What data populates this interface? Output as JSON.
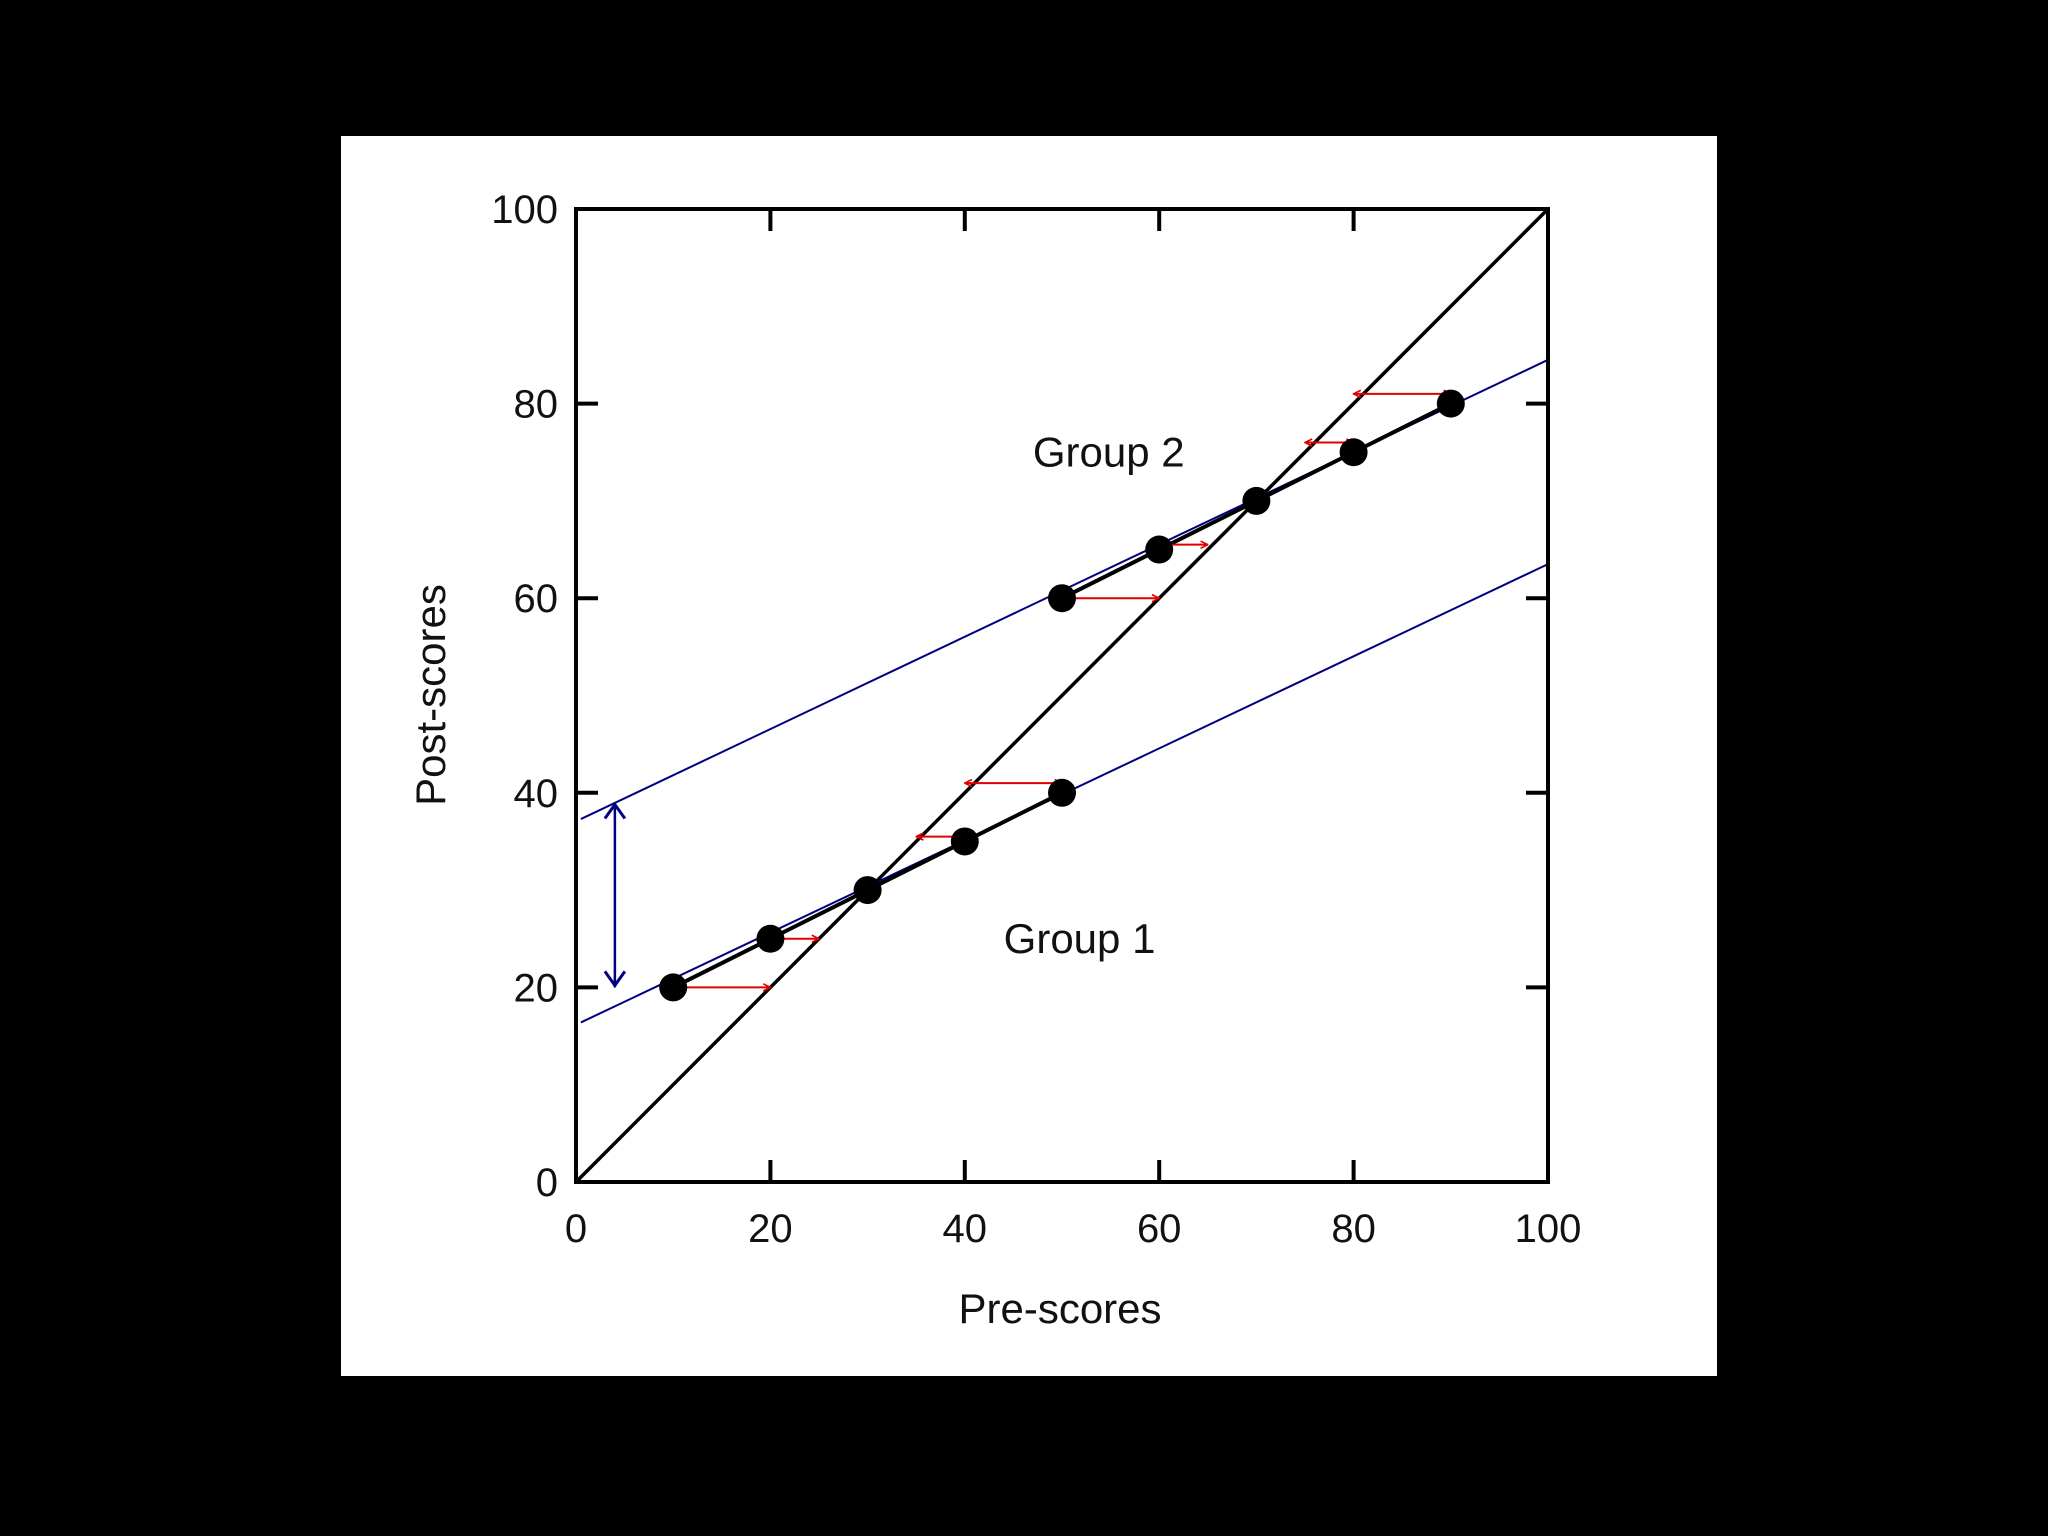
{
  "chart_data": {
    "type": "scatter",
    "title": "",
    "xlabel": "Pre-scores",
    "ylabel": "Post-scores",
    "xlim": [
      0,
      100
    ],
    "ylim": [
      0,
      100
    ],
    "x_ticks": [
      0,
      20,
      40,
      60,
      80,
      100
    ],
    "y_ticks": [
      0,
      20,
      40,
      60,
      80,
      100
    ],
    "x_tick_labels": [
      "0",
      "20",
      "40",
      "60",
      "80",
      "100"
    ],
    "y_tick_labels": [
      "0",
      "20",
      "40",
      "60",
      "80",
      "100"
    ],
    "grid": false,
    "series": [
      {
        "name": "Group 1",
        "x": [
          10,
          20,
          30,
          40,
          50
        ],
        "y": [
          20,
          25,
          30,
          35,
          40
        ]
      },
      {
        "name": "Group 2",
        "x": [
          50,
          60,
          70,
          80,
          90
        ],
        "y": [
          60,
          65,
          70,
          75,
          80
        ]
      }
    ],
    "identity_line": {
      "x": [
        0,
        100
      ],
      "y": [
        0,
        100
      ]
    },
    "regression_lines": [
      {
        "x": [
          0.5,
          100
        ],
        "y": [
          16.4,
          63.5
        ]
      },
      {
        "x": [
          0.5,
          100
        ],
        "y": [
          37.3,
          84.5
        ]
      }
    ],
    "regression_to_mean_arrows": [
      {
        "from_x": 10,
        "to_x": 20,
        "y": 20
      },
      {
        "from_x": 20,
        "to_x": 25,
        "y": 25
      },
      {
        "from_x": 35,
        "to_x": 40,
        "y": 35.5
      },
      {
        "from_x": 40,
        "to_x": 50,
        "y": 41
      },
      {
        "from_x": 50,
        "to_x": 60,
        "y": 60
      },
      {
        "from_x": 60,
        "to_x": 65,
        "y": 65.5
      },
      {
        "from_x": 75,
        "to_x": 80,
        "y": 76
      },
      {
        "from_x": 80,
        "to_x": 90,
        "y": 81
      }
    ],
    "group_gap_arrow": {
      "x": 4,
      "y_from": 20,
      "y_to": 39
    },
    "annotations": [
      {
        "text": "Group 1",
        "x": 44,
        "y": 25
      },
      {
        "text": "Group 2",
        "x": 47,
        "y": 75
      }
    ],
    "colors": {
      "points": "#000000",
      "connector": "#000000",
      "identity_line": "#000000",
      "regression_line": "#000080",
      "mean_arrow": "#e00000",
      "gap_arrow": "#000080",
      "background": "#ffffff",
      "page_background": "#000000"
    }
  }
}
